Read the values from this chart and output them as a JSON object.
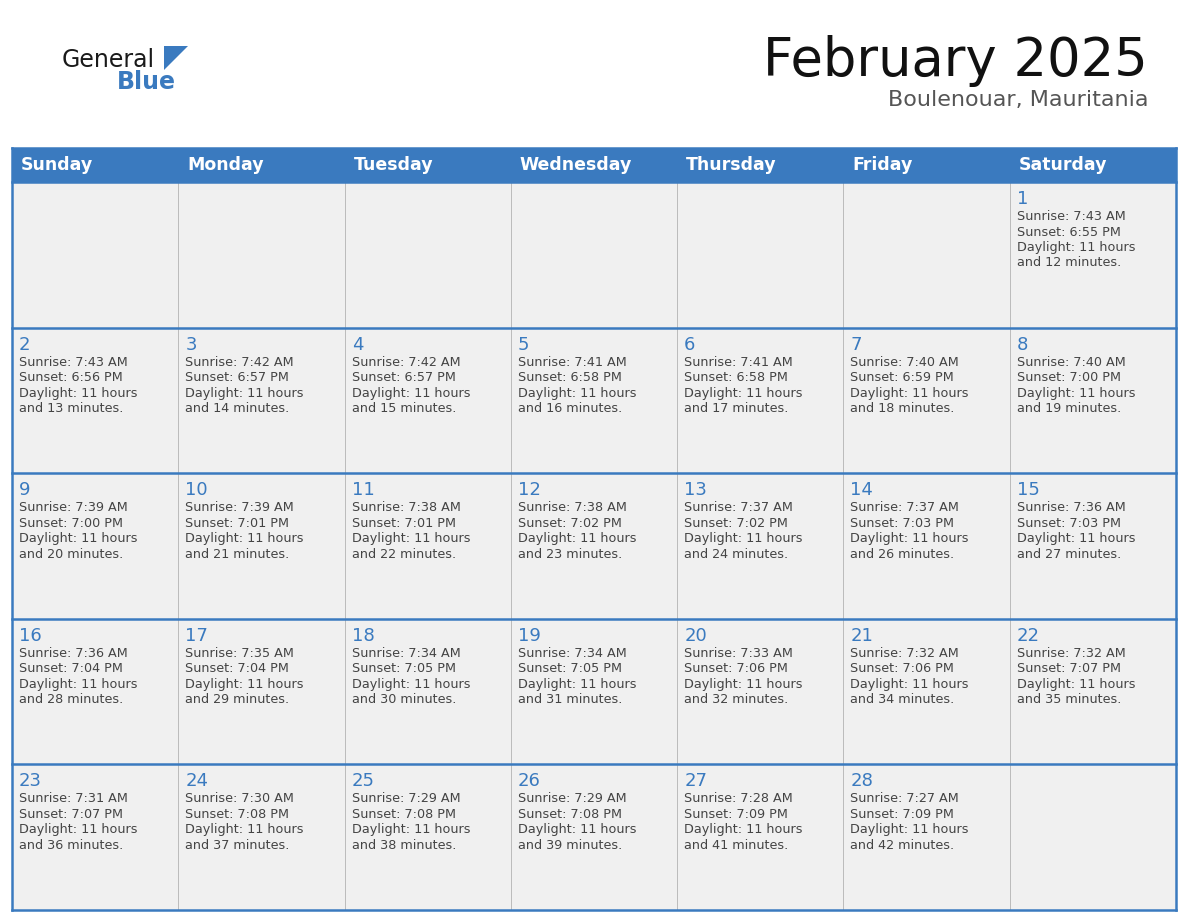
{
  "title": "February 2025",
  "subtitle": "Boulenouar, Mauritania",
  "days_of_week": [
    "Sunday",
    "Monday",
    "Tuesday",
    "Wednesday",
    "Thursday",
    "Friday",
    "Saturday"
  ],
  "header_bg": "#3a7abf",
  "header_text": "#ffffff",
  "cell_bg": "#f0f0f0",
  "day_num_color": "#3a7abf",
  "text_color": "#444444",
  "line_color": "#3a7abf",
  "sep_color": "#bbbbbb",
  "calendar_data": [
    [
      null,
      null,
      null,
      null,
      null,
      null,
      {
        "day": 1,
        "sunrise": "7:43 AM",
        "sunset": "6:55 PM",
        "daylight_h": "11 hours",
        "daylight_m": "and 12 minutes."
      }
    ],
    [
      {
        "day": 2,
        "sunrise": "7:43 AM",
        "sunset": "6:56 PM",
        "daylight_h": "11 hours",
        "daylight_m": "and 13 minutes."
      },
      {
        "day": 3,
        "sunrise": "7:42 AM",
        "sunset": "6:57 PM",
        "daylight_h": "11 hours",
        "daylight_m": "and 14 minutes."
      },
      {
        "day": 4,
        "sunrise": "7:42 AM",
        "sunset": "6:57 PM",
        "daylight_h": "11 hours",
        "daylight_m": "and 15 minutes."
      },
      {
        "day": 5,
        "sunrise": "7:41 AM",
        "sunset": "6:58 PM",
        "daylight_h": "11 hours",
        "daylight_m": "and 16 minutes."
      },
      {
        "day": 6,
        "sunrise": "7:41 AM",
        "sunset": "6:58 PM",
        "daylight_h": "11 hours",
        "daylight_m": "and 17 minutes."
      },
      {
        "day": 7,
        "sunrise": "7:40 AM",
        "sunset": "6:59 PM",
        "daylight_h": "11 hours",
        "daylight_m": "and 18 minutes."
      },
      {
        "day": 8,
        "sunrise": "7:40 AM",
        "sunset": "7:00 PM",
        "daylight_h": "11 hours",
        "daylight_m": "and 19 minutes."
      }
    ],
    [
      {
        "day": 9,
        "sunrise": "7:39 AM",
        "sunset": "7:00 PM",
        "daylight_h": "11 hours",
        "daylight_m": "and 20 minutes."
      },
      {
        "day": 10,
        "sunrise": "7:39 AM",
        "sunset": "7:01 PM",
        "daylight_h": "11 hours",
        "daylight_m": "and 21 minutes."
      },
      {
        "day": 11,
        "sunrise": "7:38 AM",
        "sunset": "7:01 PM",
        "daylight_h": "11 hours",
        "daylight_m": "and 22 minutes."
      },
      {
        "day": 12,
        "sunrise": "7:38 AM",
        "sunset": "7:02 PM",
        "daylight_h": "11 hours",
        "daylight_m": "and 23 minutes."
      },
      {
        "day": 13,
        "sunrise": "7:37 AM",
        "sunset": "7:02 PM",
        "daylight_h": "11 hours",
        "daylight_m": "and 24 minutes."
      },
      {
        "day": 14,
        "sunrise": "7:37 AM",
        "sunset": "7:03 PM",
        "daylight_h": "11 hours",
        "daylight_m": "and 26 minutes."
      },
      {
        "day": 15,
        "sunrise": "7:36 AM",
        "sunset": "7:03 PM",
        "daylight_h": "11 hours",
        "daylight_m": "and 27 minutes."
      }
    ],
    [
      {
        "day": 16,
        "sunrise": "7:36 AM",
        "sunset": "7:04 PM",
        "daylight_h": "11 hours",
        "daylight_m": "and 28 minutes."
      },
      {
        "day": 17,
        "sunrise": "7:35 AM",
        "sunset": "7:04 PM",
        "daylight_h": "11 hours",
        "daylight_m": "and 29 minutes."
      },
      {
        "day": 18,
        "sunrise": "7:34 AM",
        "sunset": "7:05 PM",
        "daylight_h": "11 hours",
        "daylight_m": "and 30 minutes."
      },
      {
        "day": 19,
        "sunrise": "7:34 AM",
        "sunset": "7:05 PM",
        "daylight_h": "11 hours",
        "daylight_m": "and 31 minutes."
      },
      {
        "day": 20,
        "sunrise": "7:33 AM",
        "sunset": "7:06 PM",
        "daylight_h": "11 hours",
        "daylight_m": "and 32 minutes."
      },
      {
        "day": 21,
        "sunrise": "7:32 AM",
        "sunset": "7:06 PM",
        "daylight_h": "11 hours",
        "daylight_m": "and 34 minutes."
      },
      {
        "day": 22,
        "sunrise": "7:32 AM",
        "sunset": "7:07 PM",
        "daylight_h": "11 hours",
        "daylight_m": "and 35 minutes."
      }
    ],
    [
      {
        "day": 23,
        "sunrise": "7:31 AM",
        "sunset": "7:07 PM",
        "daylight_h": "11 hours",
        "daylight_m": "and 36 minutes."
      },
      {
        "day": 24,
        "sunrise": "7:30 AM",
        "sunset": "7:08 PM",
        "daylight_h": "11 hours",
        "daylight_m": "and 37 minutes."
      },
      {
        "day": 25,
        "sunrise": "7:29 AM",
        "sunset": "7:08 PM",
        "daylight_h": "11 hours",
        "daylight_m": "and 38 minutes."
      },
      {
        "day": 26,
        "sunrise": "7:29 AM",
        "sunset": "7:08 PM",
        "daylight_h": "11 hours",
        "daylight_m": "and 39 minutes."
      },
      {
        "day": 27,
        "sunrise": "7:28 AM",
        "sunset": "7:09 PM",
        "daylight_h": "11 hours",
        "daylight_m": "and 41 minutes."
      },
      {
        "day": 28,
        "sunrise": "7:27 AM",
        "sunset": "7:09 PM",
        "daylight_h": "11 hours",
        "daylight_m": "and 42 minutes."
      },
      null
    ]
  ],
  "fig_width": 11.88,
  "fig_height": 9.18,
  "dpi": 100
}
